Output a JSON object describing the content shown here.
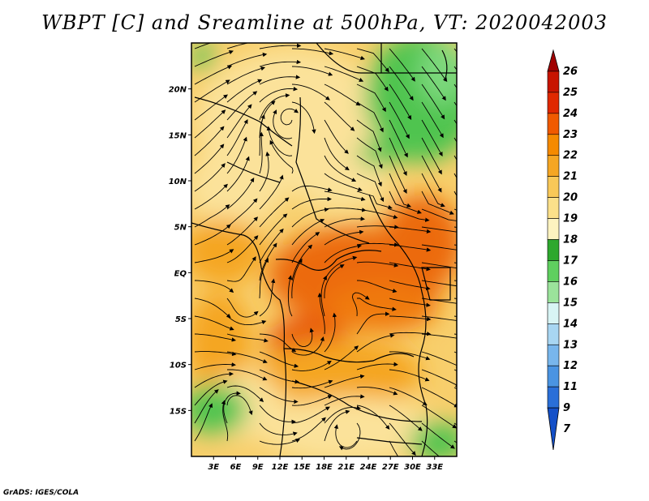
{
  "title": "WBPT [C] and Sreamline at 500hPa, VT: 2020042003",
  "credit": "GrADS: IGES/COLA",
  "map": {
    "lon_range": [
      0,
      36
    ],
    "lat_range": [
      -20,
      25
    ],
    "x_ticks": [
      {
        "value": 3,
        "label": "3E"
      },
      {
        "value": 6,
        "label": "6E"
      },
      {
        "value": 9,
        "label": "9E"
      },
      {
        "value": 12,
        "label": "12E"
      },
      {
        "value": 15,
        "label": "15E"
      },
      {
        "value": 18,
        "label": "18E"
      },
      {
        "value": 21,
        "label": "21E"
      },
      {
        "value": 24,
        "label": "24E"
      },
      {
        "value": 27,
        "label": "27E"
      },
      {
        "value": 30,
        "label": "30E"
      },
      {
        "value": 33,
        "label": "33E"
      }
    ],
    "y_ticks": [
      {
        "value": 20,
        "label": "20N"
      },
      {
        "value": 15,
        "label": "15N"
      },
      {
        "value": 10,
        "label": "10N"
      },
      {
        "value": 5,
        "label": "5N"
      },
      {
        "value": 0,
        "label": "EQ"
      },
      {
        "value": -5,
        "label": "5S"
      },
      {
        "value": -10,
        "label": "10S"
      },
      {
        "value": -15,
        "label": "15S"
      }
    ]
  },
  "colorbar": {
    "levels": [
      "26",
      "25",
      "24",
      "23",
      "22",
      "21",
      "20",
      "19",
      "18",
      "17",
      "16",
      "15",
      "14",
      "13",
      "12",
      "11",
      "9",
      "7"
    ],
    "colors": [
      "#a00000",
      "#c81400",
      "#e02800",
      "#f05a00",
      "#f58a00",
      "#f5a623",
      "#f8c858",
      "#fbe08a",
      "#fdf3c0",
      "#2ea82e",
      "#5fcf5f",
      "#9be39b",
      "#d8f4f4",
      "#a8d6f2",
      "#78b6ec",
      "#4a94e2",
      "#2a6fd8",
      "#1450c8"
    ]
  }
}
